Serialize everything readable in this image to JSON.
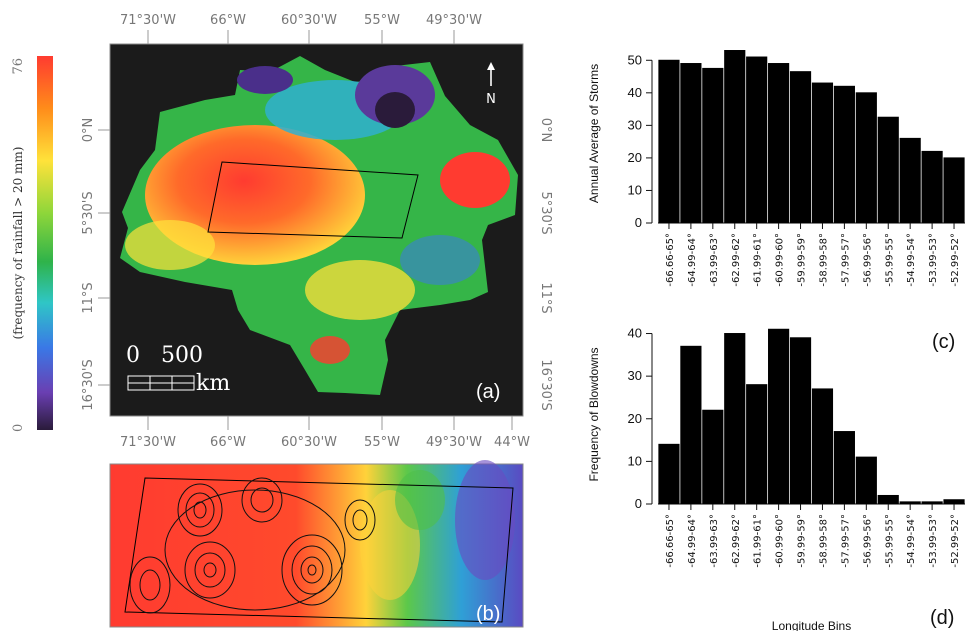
{
  "figure": {
    "map_a": {
      "panel_label": "(a)",
      "top_lon_ticks": [
        "71°30'W",
        "66°W",
        "60°30'W",
        "55°W",
        "49°30'W"
      ],
      "bottom_lon_ticks": [
        "71°30'W",
        "66°W",
        "60°30'W",
        "55°W",
        "49°30'W",
        "44°W"
      ],
      "right_lat_ticks": [
        "0°N",
        "5°30'S",
        "11°S",
        "16°30'S"
      ],
      "left_lat_ticks": [
        "0°N",
        "5°30'S",
        "11°S",
        "16°30'S"
      ],
      "north_label": "N",
      "scale_numbers": "0   500",
      "scale_unit": "km"
    },
    "colorbar": {
      "max_label": "76",
      "min_label": "0",
      "label": "(frequency of rainfall > 20 mm)",
      "colors": [
        "#ff3b30",
        "#ff8c1a",
        "#ffe23a",
        "#8ed63a",
        "#2fb34a",
        "#2fc6c6",
        "#3a78e6",
        "#6a3fb2",
        "#2a1b3a"
      ]
    },
    "map_b": {
      "panel_label": "(b)"
    }
  },
  "chart_data": [
    {
      "type": "bar",
      "panel_label": "(c)",
      "ylabel": "Annual Average of Storms",
      "xlabel": "",
      "ylim": [
        0,
        55
      ],
      "yticks": [
        "0",
        "10",
        "20",
        "30",
        "40",
        "50"
      ],
      "bar_color": "#000000",
      "categories": [
        "-66.66-65°",
        "-64.99-64°",
        "-63.99-63°",
        "-62.99-62°",
        "-61.99-61°",
        "-60.99-60°",
        "-59.99-59°",
        "-58.99-58°",
        "-57.99-57°",
        "-56.99-56°",
        "-55.99-55°",
        "-54.99-54°",
        "-53.99-53°",
        "-52.99-52°"
      ],
      "values": [
        50,
        49,
        47.5,
        53,
        51,
        49,
        46.5,
        43,
        42,
        40,
        32.5,
        26,
        22,
        20
      ]
    },
    {
      "type": "bar",
      "panel_label": "(d)",
      "ylabel": "Frequency of Blowdowns",
      "xlabel": "Longitude Bins",
      "ylim": [
        0,
        42
      ],
      "yticks": [
        "0",
        "10",
        "20",
        "30",
        "40"
      ],
      "bar_color": "#000000",
      "categories": [
        "-66.66-65°",
        "-64.99-64°",
        "-63.99-63°",
        "-62.99-62°",
        "-61.99-61°",
        "-60.99-60°",
        "-59.99-59°",
        "-58.99-58°",
        "-57.99-57°",
        "-56.99-56°",
        "-55.99-55°",
        "-54.99-54°",
        "-53.99-53°",
        "-52.99-52°"
      ],
      "values": [
        14,
        37,
        22,
        40,
        28,
        41,
        39,
        27,
        17,
        11,
        2,
        0.5,
        0.5,
        1
      ]
    }
  ]
}
